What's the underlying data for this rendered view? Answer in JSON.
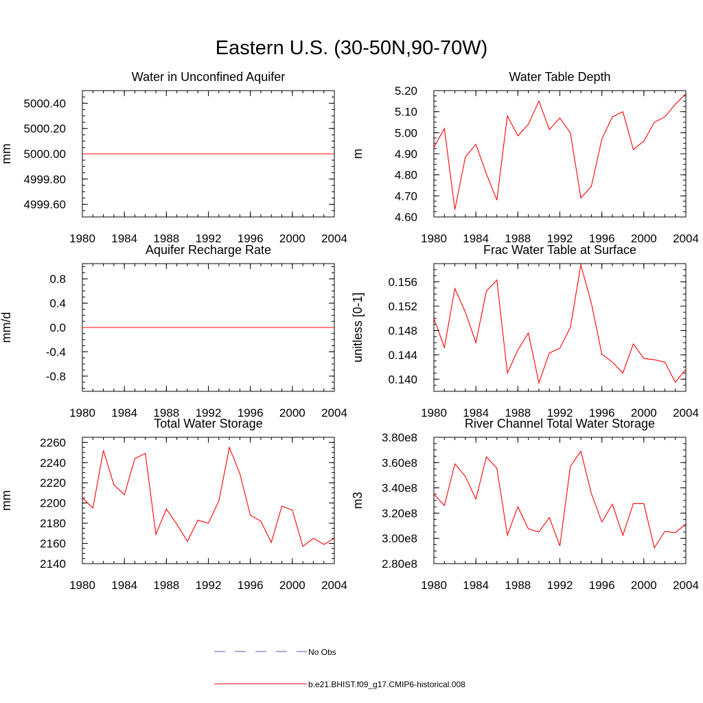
{
  "figure_title": "Eastern U.S. (30-50N,90-70W)",
  "colors": {
    "model_line": "#ff0000",
    "obs_line": "#4f5fae",
    "axis": "#000000"
  },
  "legend": [
    {
      "label": "No Obs",
      "style": "dashed",
      "color": "#4f5fae"
    },
    {
      "label": "b.e21.BHIST.f09_g17.CMIP6-historical.008",
      "style": "solid",
      "color": "#ff0000"
    }
  ],
  "chart_data": [
    {
      "type": "line",
      "title": "Water in Unconfined Aquifer",
      "xlabel": "",
      "ylabel": "mm",
      "xlim": [
        1980,
        2004
      ],
      "ylim": [
        4999.5,
        5000.5
      ],
      "xticks": [
        "1980",
        "1984",
        "1988",
        "1992",
        "1996",
        "2000",
        "2004"
      ],
      "yticks": [
        "4999.60",
        "4999.80",
        "5000.00",
        "5000.20",
        "5000.40"
      ],
      "x": [
        1980,
        1981,
        1982,
        1983,
        1984,
        1985,
        1986,
        1987,
        1988,
        1989,
        1990,
        1991,
        1992,
        1993,
        1994,
        1995,
        1996,
        1997,
        1998,
        1999,
        2000,
        2001,
        2002,
        2003,
        2004
      ],
      "series": [
        {
          "name": "b.e21.BHIST.f09_g17.CMIP6-historical.008",
          "values": [
            5000,
            5000,
            5000,
            5000,
            5000,
            5000,
            5000,
            5000,
            5000,
            5000,
            5000,
            5000,
            5000,
            5000,
            5000,
            5000,
            5000,
            5000,
            5000,
            5000,
            5000,
            5000,
            5000,
            5000,
            5000
          ]
        }
      ]
    },
    {
      "type": "line",
      "title": "Water Table Depth",
      "xlabel": "",
      "ylabel": "m",
      "xlim": [
        1980,
        2004
      ],
      "ylim": [
        4.6,
        5.2
      ],
      "xticks": [
        "1980",
        "1984",
        "1988",
        "1992",
        "1996",
        "2000",
        "2004"
      ],
      "yticks": [
        "4.60",
        "4.70",
        "4.80",
        "4.90",
        "5.00",
        "5.10",
        "5.20"
      ],
      "x": [
        1980,
        1981,
        1982,
        1983,
        1984,
        1985,
        1986,
        1987,
        1988,
        1989,
        1990,
        1991,
        1992,
        1993,
        1994,
        1995,
        1996,
        1997,
        1998,
        1999,
        2000,
        2001,
        2002,
        2003,
        2004
      ],
      "series": [
        {
          "name": "b.e21.BHIST.f09_g17.CMIP6-historical.008",
          "values": [
            4.93,
            5.02,
            4.635,
            4.885,
            4.945,
            4.805,
            4.68,
            5.08,
            4.985,
            5.04,
            5.15,
            5.015,
            5.07,
            5.0,
            4.69,
            4.745,
            4.97,
            5.075,
            5.1,
            4.92,
            4.96,
            5.05,
            5.075,
            5.135,
            5.185
          ]
        }
      ]
    },
    {
      "type": "line",
      "title": "Aquifer Recharge Rate",
      "xlabel": "",
      "ylabel": "mm/d",
      "xlim": [
        1980,
        2004
      ],
      "ylim": [
        -1.05,
        1.05
      ],
      "xticks": [
        "1980",
        "1984",
        "1988",
        "1992",
        "1996",
        "2000",
        "2004"
      ],
      "yticks": [
        "-0.8",
        "-0.4",
        "0.0",
        "0.4",
        "0.8"
      ],
      "x": [
        1980,
        1981,
        1982,
        1983,
        1984,
        1985,
        1986,
        1987,
        1988,
        1989,
        1990,
        1991,
        1992,
        1993,
        1994,
        1995,
        1996,
        1997,
        1998,
        1999,
        2000,
        2001,
        2002,
        2003,
        2004
      ],
      "series": [
        {
          "name": "b.e21.BHIST.f09_g17.CMIP6-historical.008",
          "values": [
            0,
            0,
            0,
            0,
            0,
            0,
            0,
            0,
            0,
            0,
            0,
            0,
            0,
            0,
            0,
            0,
            0,
            0,
            0,
            0,
            0,
            0,
            0,
            0,
            0
          ]
        }
      ]
    },
    {
      "type": "line",
      "title": "Frac Water Table at Surface",
      "xlabel": "",
      "ylabel": "unitless [0-1]",
      "xlim": [
        1980,
        2004
      ],
      "ylim": [
        0.138,
        0.159
      ],
      "xticks": [
        "1980",
        "1984",
        "1988",
        "1992",
        "1996",
        "2000",
        "2004"
      ],
      "yticks": [
        "0.140",
        "0.144",
        "0.148",
        "0.152",
        "0.156"
      ],
      "x": [
        1980,
        1981,
        1982,
        1983,
        1984,
        1985,
        1986,
        1987,
        1988,
        1989,
        1990,
        1991,
        1992,
        1993,
        1994,
        1995,
        1996,
        1997,
        1998,
        1999,
        2000,
        2001,
        2002,
        2003,
        2004
      ],
      "series": [
        {
          "name": "b.e21.BHIST.f09_g17.CMIP6-historical.008",
          "values": [
            0.15,
            0.1452,
            0.1549,
            0.151,
            0.146,
            0.1545,
            0.1563,
            0.141,
            0.1448,
            0.1476,
            0.1394,
            0.1443,
            0.1451,
            0.1485,
            0.1588,
            0.1525,
            0.1441,
            0.1428,
            0.141,
            0.1458,
            0.1434,
            0.1432,
            0.1428,
            0.1395,
            0.1416
          ]
        }
      ]
    },
    {
      "type": "line",
      "title": "Total Water Storage",
      "xlabel": "",
      "ylabel": "mm",
      "xlim": [
        1980,
        2004
      ],
      "ylim": [
        2140,
        2265
      ],
      "xticks": [
        "1980",
        "1984",
        "1988",
        "1992",
        "1996",
        "2000",
        "2004"
      ],
      "yticks": [
        "2140",
        "2160",
        "2180",
        "2200",
        "2220",
        "2240",
        "2260"
      ],
      "x": [
        1980,
        1981,
        1982,
        1983,
        1984,
        1985,
        1986,
        1987,
        1988,
        1989,
        1990,
        1991,
        1992,
        1993,
        1994,
        1995,
        1996,
        1997,
        1998,
        1999,
        2000,
        2001,
        2002,
        2003,
        2004
      ],
      "series": [
        {
          "name": "b.e21.BHIST.f09_g17.CMIP6-historical.008",
          "values": [
            2205,
            2195,
            2252,
            2218,
            2208,
            2244,
            2249,
            2169,
            2194,
            2179,
            2162,
            2183,
            2180,
            2202,
            2255,
            2229,
            2188,
            2182,
            2161,
            2197,
            2193,
            2157,
            2165,
            2159,
            2165
          ]
        }
      ]
    },
    {
      "type": "line",
      "title": "River Channel Total Water Storage",
      "xlabel": "",
      "ylabel": "m3",
      "xlim": [
        1980,
        2004
      ],
      "ylim": [
        280000000,
        380000000
      ],
      "xticks": [
        "1980",
        "1984",
        "1988",
        "1992",
        "1996",
        "2000",
        "2004"
      ],
      "yticks": [
        "2.80e8",
        "3.00e8",
        "3.20e8",
        "3.40e8",
        "3.60e8",
        "3.80e8"
      ],
      "x": [
        1980,
        1981,
        1982,
        1983,
        1984,
        1985,
        1986,
        1987,
        1988,
        1989,
        1990,
        1991,
        1992,
        1993,
        1994,
        1995,
        1996,
        1997,
        1998,
        1999,
        2000,
        2001,
        2002,
        2003,
        2004
      ],
      "series": [
        {
          "name": "b.e21.BHIST.f09_g17.CMIP6-historical.008",
          "values": [
            335000000,
            326000000,
            359000000,
            349000000,
            331000000,
            364500000,
            355500000,
            302500000,
            325000000,
            307500000,
            305000000,
            316500000,
            294000000,
            357000000,
            369000000,
            335500000,
            313000000,
            327000000,
            302500000,
            327500000,
            327500000,
            292500000,
            305500000,
            304500000,
            311500000
          ]
        }
      ]
    }
  ]
}
